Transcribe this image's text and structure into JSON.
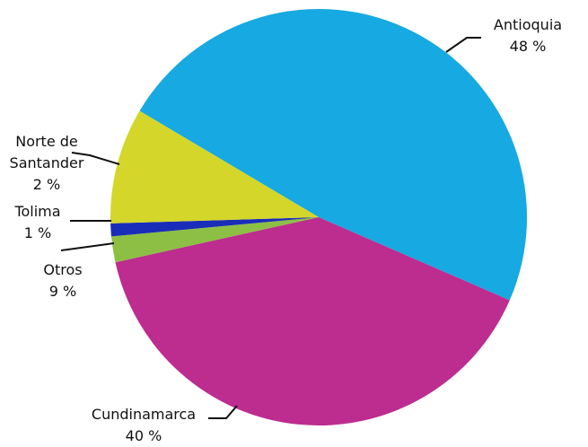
{
  "chart_data": {
    "type": "pie",
    "categories": [
      "Antioquia",
      "Cundinamarca",
      "Norte de Santander",
      "Tolima",
      "Otros"
    ],
    "values": [
      48,
      40,
      2,
      1,
      9
    ],
    "value_labels": [
      "48 %",
      "40 %",
      "2 %",
      "1 %",
      "9 %"
    ],
    "colors": [
      "#17a9e1",
      "#bd2c8f",
      "#8dbf44",
      "#1a2db8",
      "#d4d62a"
    ]
  }
}
